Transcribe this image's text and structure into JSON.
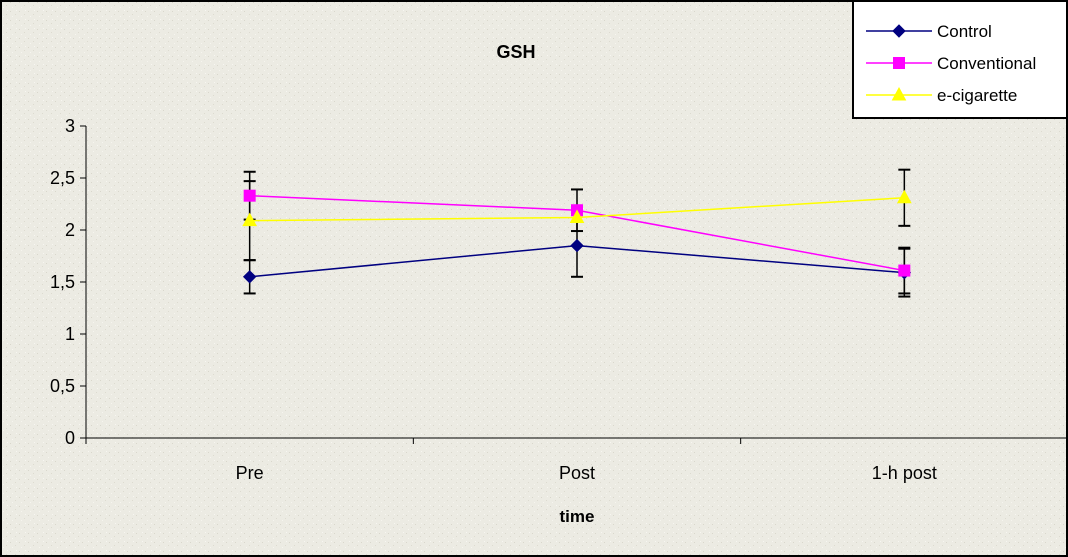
{
  "chart_data": {
    "type": "line",
    "title": "GSH",
    "xlabel": "time",
    "ylabel": "",
    "categories": [
      "Pre",
      "Post",
      "1-h post"
    ],
    "ylim": [
      0,
      3
    ],
    "yticks": [
      "0",
      "0,5",
      "1",
      "1,5",
      "2",
      "2,5",
      "3"
    ],
    "ytick_values": [
      0,
      0.5,
      1,
      1.5,
      2,
      2.5,
      3
    ],
    "grid": false,
    "legend_position": "top-right",
    "series": [
      {
        "name": "Control",
        "color": "#000080",
        "marker": "diamond",
        "values": [
          1.55,
          1.85,
          1.59
        ],
        "error": [
          0.16,
          0.3,
          0.23
        ]
      },
      {
        "name": "Conventional",
        "color": "#ff00ff",
        "marker": "square",
        "values": [
          2.33,
          2.19,
          1.61
        ],
        "error": [
          0.23,
          0.2,
          0.22
        ]
      },
      {
        "name": "e-cigarette",
        "color": "#ffff00",
        "marker": "triangle",
        "values": [
          2.09,
          2.12,
          2.31
        ],
        "error": [
          0.38,
          0.0,
          0.27
        ]
      }
    ]
  }
}
